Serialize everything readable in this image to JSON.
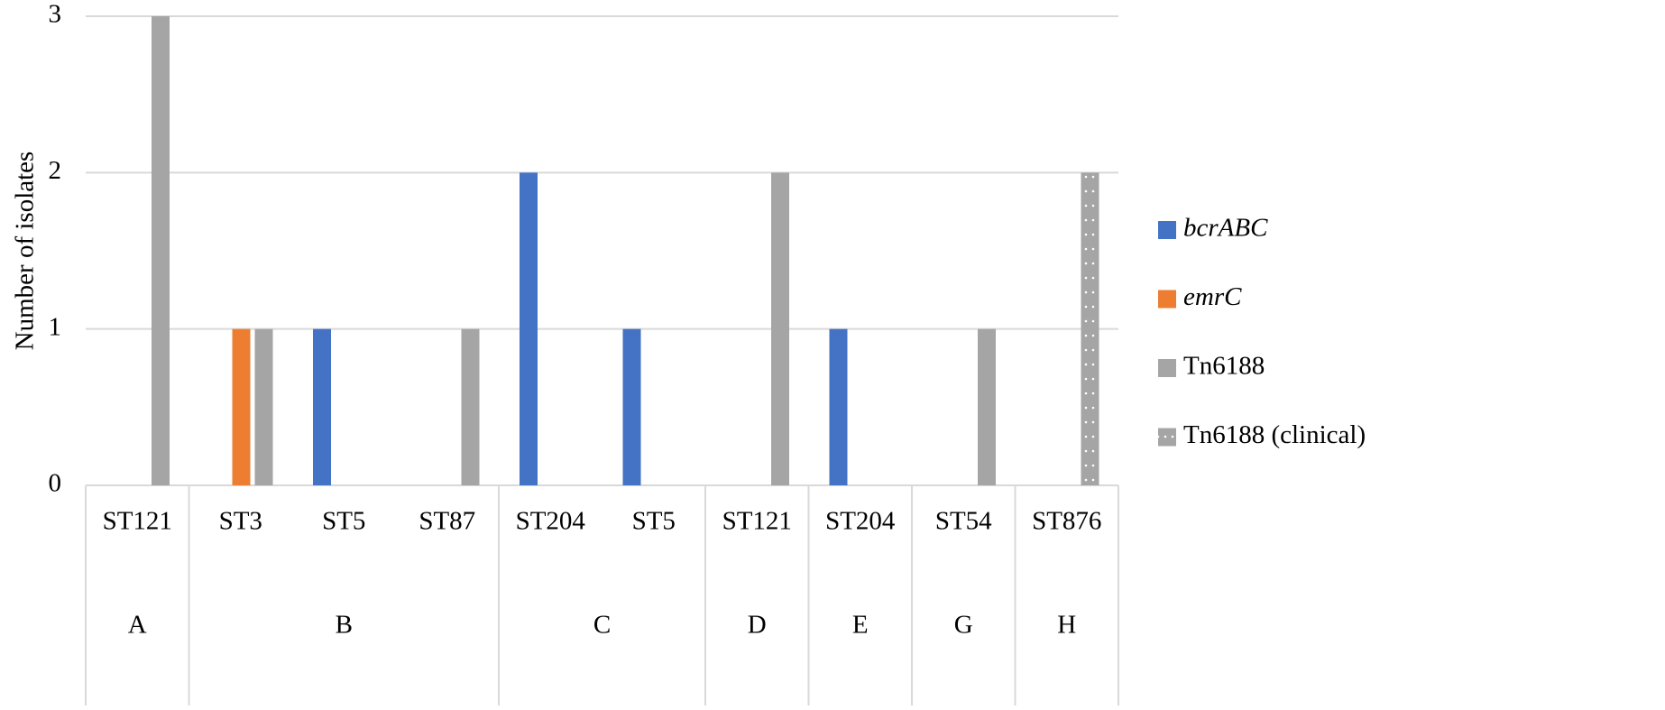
{
  "chart_data": {
    "type": "bar",
    "ylabel": "Number of isolates",
    "groups": [
      {
        "label": "A",
        "categories": [
          "ST121"
        ]
      },
      {
        "label": "B",
        "categories": [
          "ST3",
          "ST5",
          "ST87"
        ]
      },
      {
        "label": "C",
        "categories": [
          "ST204",
          "ST5"
        ]
      },
      {
        "label": "D",
        "categories": [
          "ST121"
        ]
      },
      {
        "label": "E",
        "categories": [
          "ST204"
        ]
      },
      {
        "label": "G",
        "categories": [
          "ST54"
        ]
      },
      {
        "label": "H",
        "categories": [
          "ST876"
        ]
      }
    ],
    "series": [
      {
        "name": "bcrABC",
        "color": "#4472c4",
        "italic": true,
        "values": [
          null,
          null,
          1,
          null,
          2,
          1,
          null,
          1,
          null,
          null
        ]
      },
      {
        "name": "emrC",
        "color": "#ed7d31",
        "italic": true,
        "values": [
          null,
          1,
          null,
          null,
          null,
          null,
          null,
          null,
          null,
          null
        ]
      },
      {
        "name": "Tn6188",
        "color": "#a5a5a5",
        "italic": false,
        "values": [
          3,
          1,
          null,
          1,
          null,
          null,
          2,
          null,
          1,
          null
        ]
      },
      {
        "name": "Tn6188 (clinical)",
        "color": "#a5a5a5",
        "italic": false,
        "pattern": "dotted",
        "values": [
          null,
          null,
          null,
          null,
          null,
          null,
          null,
          null,
          null,
          2
        ]
      }
    ],
    "ylim": [
      0,
      3
    ],
    "yticks": [
      0,
      1,
      2,
      3
    ],
    "grid": true,
    "legend": "right"
  }
}
